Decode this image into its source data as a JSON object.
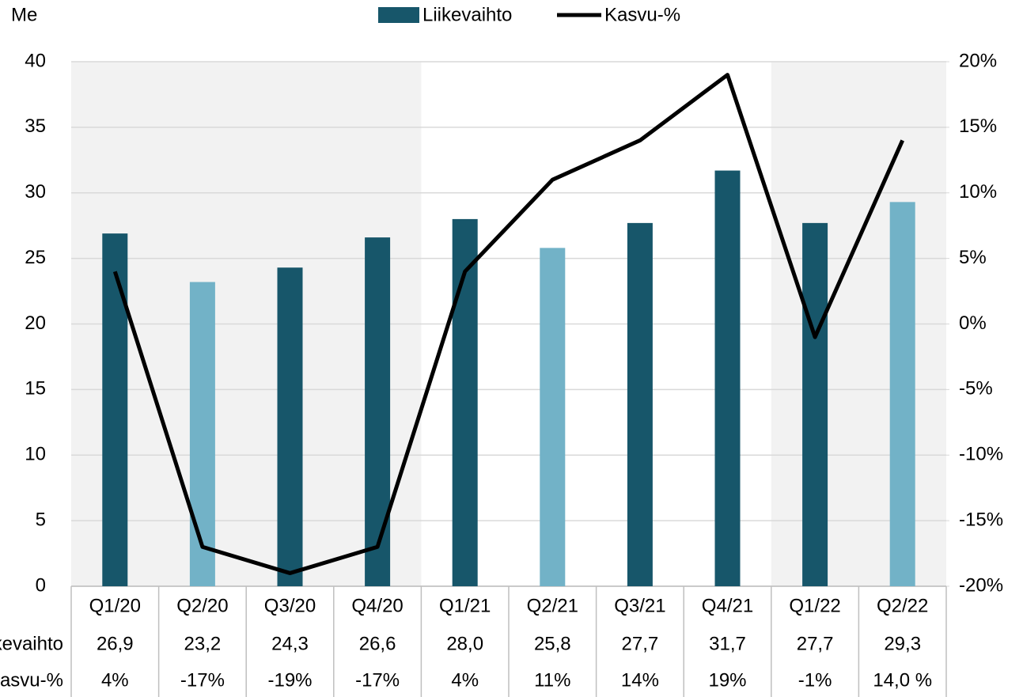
{
  "chart_data": {
    "type": "bar_line",
    "y_axis_label": "Me",
    "categories": [
      "Q1/20",
      "Q2/20",
      "Q3/20",
      "Q4/20",
      "Q1/21",
      "Q2/21",
      "Q3/21",
      "Q4/21",
      "Q1/22",
      "Q2/22"
    ],
    "series": [
      {
        "name": "Liikevaihto",
        "type": "bar",
        "color": "#17566a",
        "colors": [
          "#17566a",
          "#72b2c7",
          "#17566a",
          "#17566a",
          "#17566a",
          "#72b2c7",
          "#17566a",
          "#17566a",
          "#17566a",
          "#72b2c7"
        ],
        "values": [
          26.9,
          23.2,
          24.3,
          26.6,
          28.0,
          25.8,
          27.7,
          31.7,
          27.7,
          29.3
        ],
        "value_labels": [
          "26,9",
          "23,2",
          "24,3",
          "26,6",
          "28,0",
          "25,8",
          "27,7",
          "31,7",
          "27,7",
          "29,3"
        ]
      },
      {
        "name": "Kasvu-%",
        "type": "line",
        "axis": "y2",
        "color": "#000000",
        "values": [
          4,
          -17,
          -19,
          -17,
          4,
          11,
          14,
          19,
          -1,
          14
        ],
        "value_labels": [
          "4%",
          "-17%",
          "-19%",
          "-17%",
          "4%",
          "11%",
          "14%",
          "19%",
          "-1%",
          "14,0 %"
        ]
      }
    ],
    "ylim": [
      0,
      40
    ],
    "yticks": [
      0,
      5,
      10,
      15,
      20,
      25,
      30,
      35,
      40
    ],
    "y2lim": [
      -20,
      20
    ],
    "y2ticks": [
      {
        "value": -20,
        "label": "-20%"
      },
      {
        "value": -15,
        "label": "-15%"
      },
      {
        "value": -10,
        "label": "-10%"
      },
      {
        "value": -5,
        "label": "-5%"
      },
      {
        "value": 0,
        "label": "0%"
      },
      {
        "value": 5,
        "label": "5%"
      },
      {
        "value": 10,
        "label": "10%"
      },
      {
        "value": 15,
        "label": "15%"
      },
      {
        "value": 20,
        "label": "20%"
      }
    ],
    "grid": true,
    "legend": "top"
  }
}
